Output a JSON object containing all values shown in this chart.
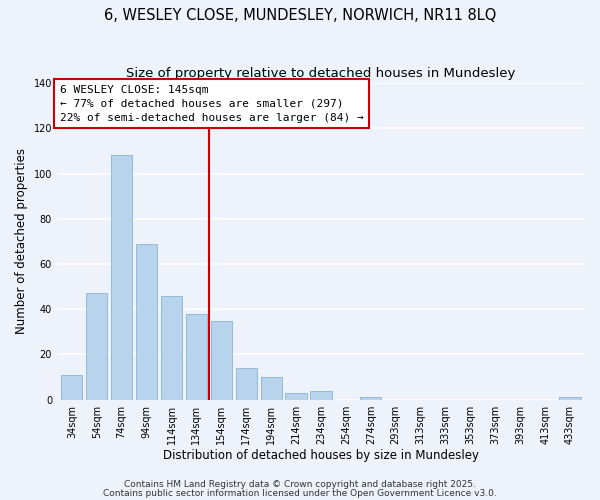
{
  "title": "6, WESLEY CLOSE, MUNDESLEY, NORWICH, NR11 8LQ",
  "subtitle": "Size of property relative to detached houses in Mundesley",
  "xlabel": "Distribution of detached houses by size in Mundesley",
  "ylabel": "Number of detached properties",
  "bar_labels": [
    "34sqm",
    "54sqm",
    "74sqm",
    "94sqm",
    "114sqm",
    "134sqm",
    "154sqm",
    "174sqm",
    "194sqm",
    "214sqm",
    "234sqm",
    "254sqm",
    "274sqm",
    "293sqm",
    "313sqm",
    "333sqm",
    "353sqm",
    "373sqm",
    "393sqm",
    "413sqm",
    "433sqm"
  ],
  "bar_values": [
    11,
    47,
    108,
    69,
    46,
    38,
    35,
    14,
    10,
    3,
    4,
    0,
    1,
    0,
    0,
    0,
    0,
    0,
    0,
    0,
    1
  ],
  "bar_color": "#b8d4ed",
  "bar_edge_color": "#8ab4d8",
  "vline_x": 5.5,
  "vline_color": "#cc0000",
  "ann_line1": "6 WESLEY CLOSE: 145sqm",
  "ann_line2": "← 77% of detached houses are smaller (297)",
  "ann_line3": "22% of semi-detached houses are larger (84) →",
  "ylim": [
    0,
    140
  ],
  "yticks": [
    0,
    20,
    40,
    60,
    80,
    100,
    120,
    140
  ],
  "footer_line1": "Contains HM Land Registry data © Crown copyright and database right 2025.",
  "footer_line2": "Contains public sector information licensed under the Open Government Licence v3.0.",
  "background_color": "#eef2fb",
  "grid_color": "#ffffff",
  "title_fontsize": 10.5,
  "subtitle_fontsize": 9.5,
  "axis_label_fontsize": 8.5,
  "tick_fontsize": 7,
  "ann_fontsize": 8,
  "footer_fontsize": 6.5
}
